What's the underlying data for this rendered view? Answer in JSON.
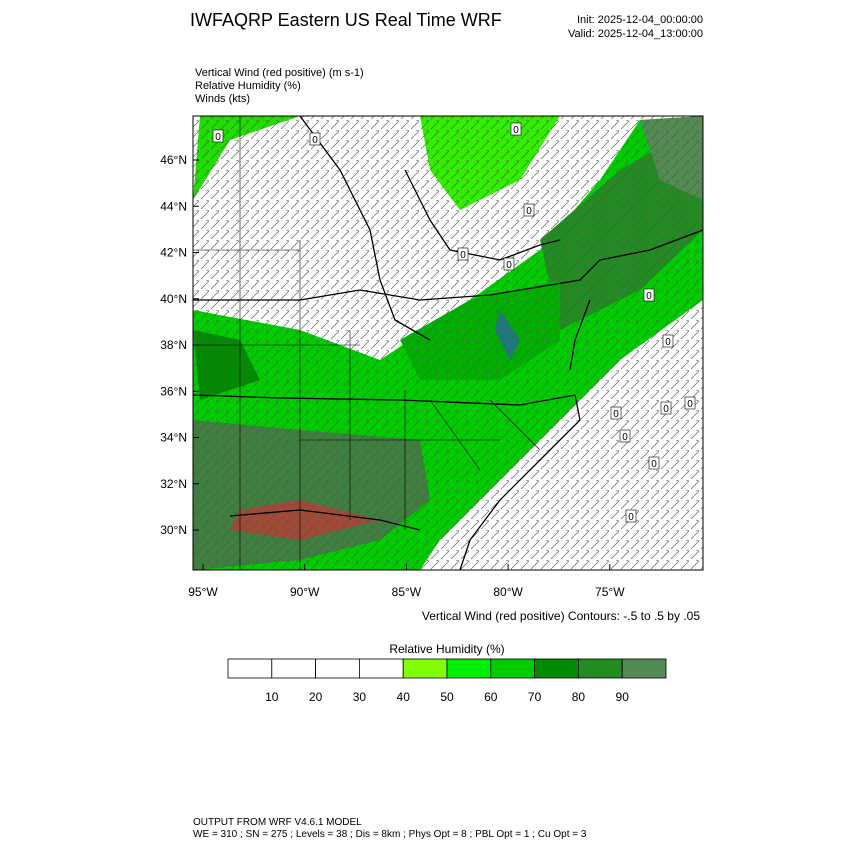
{
  "header": {
    "title": "IWFAQRP Eastern US Real Time WRF",
    "init": "Init: 2025-12-04_00:00:00",
    "valid": "Valid: 2025-12-04_13:00:00"
  },
  "fields": [
    "Vertical Wind (red positive)   (m s-1)",
    "Relative Humidity   (%)",
    "Winds   (kts)"
  ],
  "map": {
    "lat_labels": [
      "46°N",
      "44°N",
      "42°N",
      "40°N",
      "38°N",
      "36°N",
      "34°N",
      "32°N",
      "30°N"
    ],
    "lon_labels": [
      "95°W",
      "90°W",
      "85°W",
      "80°W",
      "75°W"
    ],
    "contour_labels": [
      "0",
      "0",
      "0",
      "0",
      "0",
      "0",
      "0",
      "0",
      "0",
      "0",
      "0",
      "0",
      "0",
      "0"
    ],
    "contour_note": "Vertical Wind (red positive) Contours: -.5 to .5 by .05"
  },
  "colorbar": {
    "title": "Relative Humidity  (%)",
    "labels": [
      10,
      20,
      30,
      40,
      50,
      60,
      70,
      80,
      90
    ],
    "colors": [
      "#ffffff",
      "#ffffff",
      "#ffffff",
      "#ffffff",
      "#80ff00",
      "#00ee00",
      "#00cd00",
      "#008b00",
      "#228b22",
      "#548b54"
    ]
  },
  "footer": {
    "line1": "OUTPUT FROM WRF V4.6.1 MODEL",
    "line2": "WE = 310 ; SN = 275 ; Levels = 38 ; Dis = 8km ; Phys Opt = 8 ; PBL Opt = 1 ; Cu Opt = 3"
  }
}
